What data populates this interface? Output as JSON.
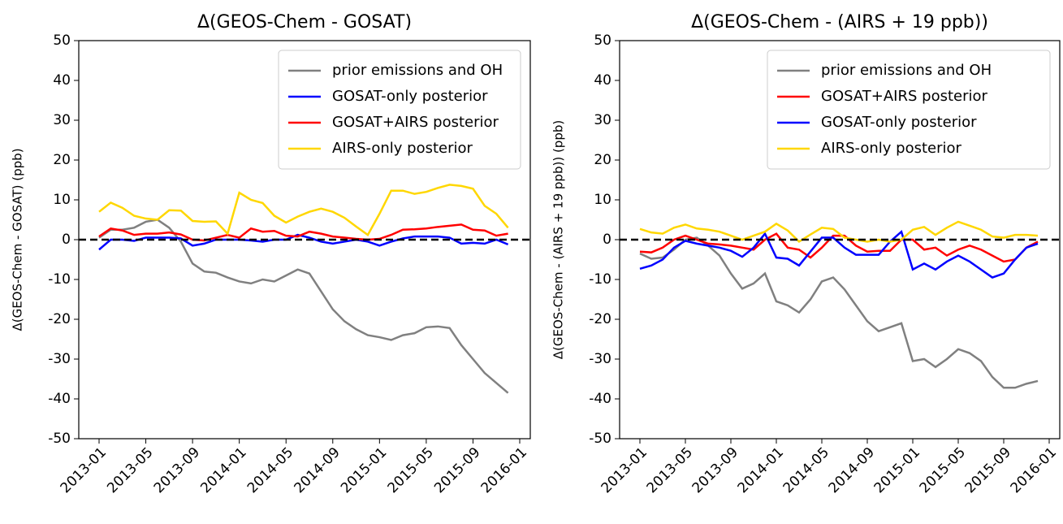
{
  "chart_data": [
    {
      "type": "line",
      "title": "Δ(GEOS-Chem - GOSAT)",
      "y_label": "Δ(GEOS-Chem - GOSAT) (ppb)",
      "x": [
        "2013-01",
        "2013-02",
        "2013-03",
        "2013-04",
        "2013-05",
        "2013-06",
        "2013-07",
        "2013-08",
        "2013-09",
        "2013-10",
        "2013-11",
        "2013-12",
        "2014-01",
        "2014-02",
        "2014-03",
        "2014-04",
        "2014-05",
        "2014-06",
        "2014-07",
        "2014-08",
        "2014-09",
        "2014-10",
        "2014-11",
        "2014-12",
        "2015-01",
        "2015-02",
        "2015-03",
        "2015-04",
        "2015-05",
        "2015-06",
        "2015-07",
        "2015-08",
        "2015-09",
        "2015-10",
        "2015-11",
        "2015-12"
      ],
      "series": [
        {
          "name": "prior emissions and OH",
          "color": "#808080",
          "values": [
            0.5,
            2.5,
            2.5,
            3,
            4.5,
            5,
            3,
            -0.5,
            -6,
            -8,
            -8.3,
            -9.5,
            -10.5,
            -11,
            -10,
            -10.5,
            -9,
            -7.5,
            -8.5,
            -13,
            -17.5,
            -20.5,
            -22.5,
            -24,
            -24.5,
            -25.2,
            -24,
            -23.5,
            -22,
            -21.8,
            -22.2,
            -26.5,
            -30,
            -33.5,
            -36,
            -38.5
          ]
        },
        {
          "name": "GOSAT-only posterior",
          "color": "#0000ff",
          "values": [
            -2.5,
            0,
            0,
            -0.3,
            0.5,
            0.5,
            0.5,
            0.3,
            -1.5,
            -1,
            0,
            0,
            0,
            -0.2,
            -0.5,
            0,
            0,
            1.2,
            0.5,
            -0.5,
            -1,
            -0.5,
            0,
            -0.5,
            -1.5,
            -0.5,
            0.3,
            0.8,
            0.8,
            0.8,
            0.5,
            -1,
            -0.8,
            -1,
            0,
            -1.2
          ]
        },
        {
          "name": "GOSAT+AIRS posterior",
          "color": "#ff0000",
          "values": [
            0.8,
            2.8,
            2.3,
            1.2,
            1.5,
            1.5,
            1.8,
            1.3,
            0,
            -0.2,
            0.5,
            1.2,
            0.5,
            2.8,
            2,
            2.2,
            1,
            0.8,
            2,
            1.5,
            0.8,
            0.5,
            0.2,
            0,
            0.2,
            1.2,
            2.5,
            2.6,
            2.8,
            3.2,
            3.5,
            3.8,
            2.5,
            2.3,
            1,
            1.5
          ]
        },
        {
          "name": "AIRS-only posterior",
          "color": "#ffd700",
          "values": [
            7,
            9.3,
            8,
            6,
            5.3,
            5,
            7.4,
            7.3,
            4.7,
            4.5,
            4.6,
            1.5,
            11.8,
            10,
            9.2,
            6,
            4.3,
            5.8,
            7,
            7.8,
            7,
            5.5,
            3.3,
            1.2,
            6.5,
            12.3,
            12.3,
            11.5,
            12,
            13,
            13.8,
            13.5,
            12.8,
            8.5,
            6.5,
            3
          ]
        }
      ],
      "ylim": [
        -50,
        50
      ],
      "yticks": [
        -50,
        -40,
        -30,
        -20,
        -10,
        0,
        10,
        20,
        30,
        40,
        50
      ],
      "xticks": [
        "2013-01",
        "2013-05",
        "2013-09",
        "2014-01",
        "2014-05",
        "2014-09",
        "2015-01",
        "2015-05",
        "2015-09",
        "2016-01"
      ],
      "hline": 0,
      "legend": "upper right"
    },
    {
      "type": "line",
      "title": "Δ(GEOS-Chem - (AIRS + 19 ppb))",
      "y_label": "Δ(GEOS-Chem - (AIRS + 19 ppb)) (ppb)",
      "x": [
        "2013-01",
        "2013-02",
        "2013-03",
        "2013-04",
        "2013-05",
        "2013-06",
        "2013-07",
        "2013-08",
        "2013-09",
        "2013-10",
        "2013-11",
        "2013-12",
        "2014-01",
        "2014-02",
        "2014-03",
        "2014-04",
        "2014-05",
        "2014-06",
        "2014-07",
        "2014-08",
        "2014-09",
        "2014-10",
        "2014-11",
        "2014-12",
        "2015-01",
        "2015-02",
        "2015-03",
        "2015-04",
        "2015-05",
        "2015-06",
        "2015-07",
        "2015-08",
        "2015-09",
        "2015-10",
        "2015-11",
        "2015-12"
      ],
      "series": [
        {
          "name": "prior emissions and OH",
          "color": "#808080",
          "values": [
            -3.5,
            -4.8,
            -4.5,
            -2.5,
            0,
            0.5,
            -1.5,
            -4,
            -8.5,
            -12.3,
            -11,
            -8.5,
            -15.5,
            -16.5,
            -18.3,
            -15,
            -10.5,
            -9.5,
            -12.5,
            -16.5,
            -20.5,
            -23,
            -22,
            -21,
            -30.5,
            -30,
            -32,
            -30,
            -27.5,
            -28.5,
            -30.5,
            -34.5,
            -37.2,
            -37.2,
            -36.2,
            -35.5
          ]
        },
        {
          "name": "GOSAT+AIRS posterior",
          "color": "#ff0000",
          "values": [
            -3,
            -3.2,
            -2,
            0,
            1,
            0,
            -1,
            -1.2,
            -1.5,
            -2,
            -2.5,
            0,
            1.5,
            -2,
            -2.5,
            -4.5,
            -2,
            1,
            1,
            -1.5,
            -3,
            -2.8,
            -2.8,
            0,
            0,
            -2.5,
            -2,
            -4,
            -2.5,
            -1.5,
            -2.5,
            -4,
            -5.5,
            -5,
            -2,
            -0.5
          ]
        },
        {
          "name": "GOSAT-only posterior",
          "color": "#0000ff",
          "values": [
            -7.3,
            -6.5,
            -5,
            -2,
            -0.3,
            -1,
            -1.5,
            -2,
            -2.8,
            -4.3,
            -2,
            1.5,
            -4.5,
            -4.8,
            -6.5,
            -3,
            0.5,
            0.5,
            -2,
            -3.8,
            -3.8,
            -3.8,
            -0.5,
            2,
            -7.5,
            -6,
            -7.5,
            -5.5,
            -4,
            -5.5,
            -7.5,
            -9.5,
            -8.5,
            -5,
            -2,
            -1
          ]
        },
        {
          "name": "AIRS-only posterior",
          "color": "#ffd700",
          "values": [
            2.7,
            1.8,
            1.5,
            3,
            3.8,
            2.8,
            2.5,
            2,
            1,
            0,
            1,
            2,
            4,
            2.3,
            -0.5,
            1.3,
            3,
            2.7,
            0.5,
            0,
            -0.5,
            0,
            -0.5,
            0,
            2.5,
            3.2,
            1.2,
            3,
            4.5,
            3.5,
            2.5,
            0.8,
            0.5,
            1.2,
            1.2,
            1
          ]
        }
      ],
      "ylim": [
        -50,
        50
      ],
      "yticks": [
        -50,
        -40,
        -30,
        -20,
        -10,
        0,
        10,
        20,
        30,
        40,
        50
      ],
      "xticks": [
        "2013-01",
        "2013-05",
        "2013-09",
        "2014-01",
        "2014-05",
        "2014-09",
        "2015-01",
        "2015-05",
        "2015-09",
        "2016-01"
      ],
      "hline": 0,
      "legend": "upper right"
    }
  ]
}
